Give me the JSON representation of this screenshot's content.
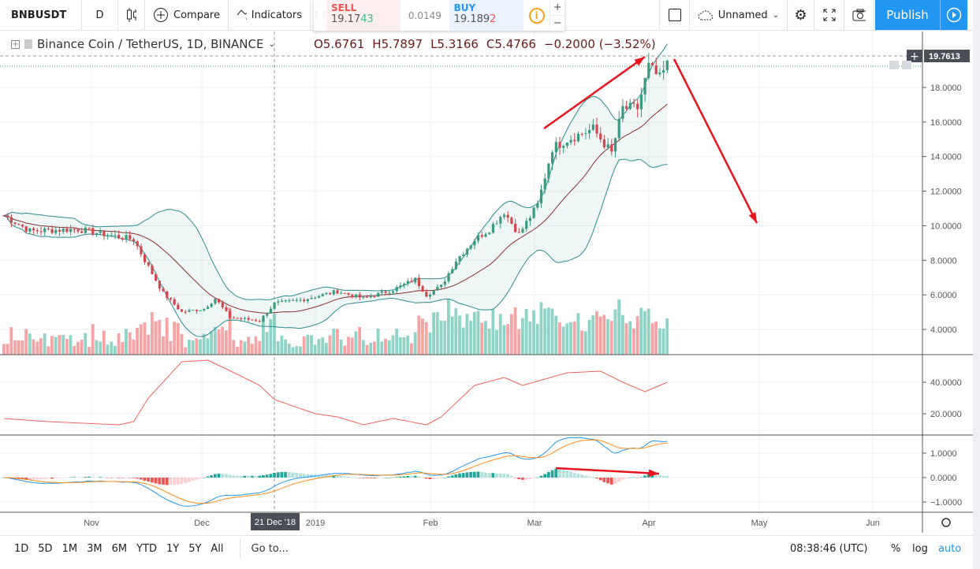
{
  "toolbar": {
    "symbol": "BNBUSDT",
    "interval": "D",
    "compare_label": "Compare",
    "indicators_label": "Indicators",
    "layout_name": "Unnamed",
    "publish_label": "Publish"
  },
  "trade": {
    "sell_label": "SELL",
    "sell_price_main": "19.17",
    "sell_price_tail": "43",
    "spread": "0.0149",
    "buy_label": "BUY",
    "buy_price_main": "19.189",
    "buy_price_tail": "2",
    "plus": "+",
    "minus": "−"
  },
  "legend": {
    "title": "Binance Coin / TetherUS, 1D, BINANCE",
    "open": "O5.6761",
    "high": "H5.7897",
    "low": "L5.3166",
    "close": "C5.4766",
    "change": "−0.2000 (−3.52%)"
  },
  "price_axis": {
    "current_price": "19.7613",
    "main_ticks": [
      "18.0000",
      "16.0000",
      "14.0000",
      "12.0000",
      "10.0000",
      "8.0000",
      "6.0000",
      "4.0000"
    ],
    "osc_ticks": [
      "40.0000",
      "20.0000"
    ],
    "macd_ticks": [
      "1.0000",
      "0.0000",
      "−1.0000"
    ]
  },
  "time_axis": {
    "labels": [
      "Nov",
      "Dec",
      "2019",
      "Feb",
      "Mar",
      "Apr",
      "May",
      "Jun"
    ],
    "crosshair_label": "21 Dec '18"
  },
  "bottom": {
    "ranges": [
      "1D",
      "5D",
      "1M",
      "3M",
      "6M",
      "YTD",
      "1Y",
      "5Y",
      "All"
    ],
    "goto": "Go to...",
    "clock": "08:38:46 (UTC)",
    "percent": "%",
    "log": "log",
    "auto": "auto"
  },
  "colors": {
    "up": "#3a9a80",
    "down": "#d4464c",
    "vol_up": "#8fd3c6",
    "vol_down": "#f5a3a3",
    "band": "#2b8c8c",
    "basis": "#8b2e2e",
    "osc": "#f0625e",
    "macd": "#2196f3",
    "signal": "#ff8c1a",
    "accent": "#2196f3",
    "annotation": "#e8141b"
  },
  "chart_data": {
    "type": "candlestick",
    "title": "Binance Coin / TetherUS, 1D, BINANCE",
    "price_ylim": [
      3,
      20.5
    ],
    "close_keypoints": [
      [
        0,
        10.6
      ],
      [
        7,
        9.7
      ],
      [
        20,
        9.8
      ],
      [
        35,
        9.2
      ],
      [
        38,
        8.0
      ],
      [
        43,
        6.1
      ],
      [
        48,
        5.0
      ],
      [
        54,
        5.2
      ],
      [
        57,
        5.8
      ],
      [
        61,
        4.7
      ],
      [
        69,
        4.5
      ],
      [
        73,
        5.5
      ],
      [
        80,
        5.7
      ],
      [
        90,
        6.2
      ],
      [
        97,
        5.8
      ],
      [
        105,
        6.3
      ],
      [
        111,
        6.9
      ],
      [
        114,
        6.0
      ],
      [
        118,
        6.5
      ],
      [
        122,
        8.0
      ],
      [
        127,
        9.2
      ],
      [
        131,
        9.8
      ],
      [
        135,
        10.8
      ],
      [
        139,
        9.5
      ],
      [
        144,
        11.2
      ],
      [
        148,
        14.5
      ],
      [
        152,
        15.0
      ],
      [
        159,
        15.6
      ],
      [
        164,
        14.2
      ],
      [
        167,
        16.8
      ],
      [
        171,
        16.8
      ],
      [
        174,
        19.2
      ],
      [
        177,
        18.5
      ],
      [
        179,
        19.3
      ]
    ],
    "oscillator_keypoints": [
      [
        0,
        17
      ],
      [
        12,
        15
      ],
      [
        31,
        13
      ],
      [
        35,
        15
      ],
      [
        39,
        30
      ],
      [
        48,
        53
      ],
      [
        55,
        54
      ],
      [
        63,
        45
      ],
      [
        69,
        38
      ],
      [
        73,
        29
      ],
      [
        84,
        20
      ],
      [
        90,
        18
      ],
      [
        97,
        13
      ],
      [
        105,
        17
      ],
      [
        114,
        13
      ],
      [
        118,
        18
      ],
      [
        127,
        38
      ],
      [
        135,
        43
      ],
      [
        140,
        38
      ],
      [
        146,
        42
      ],
      [
        152,
        46
      ],
      [
        161,
        47
      ],
      [
        167,
        40
      ],
      [
        173,
        34
      ],
      [
        179,
        40
      ]
    ],
    "overlays": [
      "Bollinger Bands (20, 2)",
      "Volume"
    ],
    "panes": [
      "price",
      "oscillator",
      "MACD (12, 26, 9)"
    ]
  }
}
